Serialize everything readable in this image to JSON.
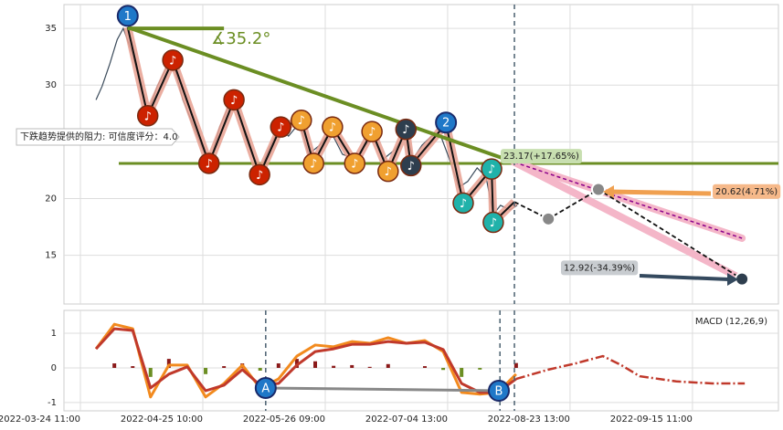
{
  "chart_data": [
    {
      "type": "line",
      "xlim": [
        3.94,
        132.35
      ],
      "ylim": [
        10.7,
        37.1
      ],
      "yticks": [
        15,
        20,
        25,
        30,
        35
      ],
      "grid": true,
      "price": {
        "color": "#3a4a5a",
        "x": [
          9.7,
          10.8,
          12.2,
          13.5,
          14.6,
          16.3,
          17.9,
          19.0,
          20.7,
          22.3,
          23.6,
          25.3,
          27.3,
          28.9,
          30.2,
          31.9,
          33.5,
          34.8,
          36.5,
          38.1,
          39.4,
          41.1,
          42.7,
          44.3,
          46.3,
          47.9,
          49.9,
          51.9,
          54.0,
          56.2,
          58.1,
          59.8,
          61.4,
          63.4,
          65.4,
          66.7,
          68.3,
          70.0,
          71.6,
          73.2,
          74.9,
          76.5,
          78.2,
          79.8,
          81.1,
          82.4,
          84.1,
          85.4
        ],
        "values": [
          28.7,
          29.9,
          31.9,
          34.0,
          35.0,
          32.7,
          29.5,
          27.5,
          29.9,
          31.5,
          31.9,
          28.7,
          26.3,
          24.3,
          23.2,
          26.3,
          28.1,
          28.5,
          25.5,
          23.5,
          22.7,
          24.7,
          26.3,
          25.5,
          26.7,
          23.9,
          24.7,
          25.9,
          23.9,
          23.5,
          24.7,
          25.5,
          23.5,
          24.3,
          25.9,
          23.5,
          24.7,
          25.5,
          25.6,
          23.5,
          21.0,
          21.5,
          22.7,
          21.9,
          18.6,
          19.4,
          19.0,
          19.4
        ]
      },
      "zigzag": {
        "color": "#111111",
        "highlight": "#e8a090",
        "x": [
          15.4,
          19.0,
          23.5,
          30.0,
          34.5,
          39.1,
          42.9,
          46.6,
          48.8,
          52.2,
          56.2,
          59.3,
          62.2,
          65.4,
          66.3,
          72.6,
          75.7,
          80.8,
          81.1,
          84.9
        ],
        "values": [
          35.1,
          27.3,
          32.2,
          23.1,
          28.7,
          22.1,
          26.3,
          26.9,
          23.1,
          26.3,
          23.1,
          25.9,
          22.4,
          26.1,
          22.9,
          26.6,
          19.6,
          22.6,
          17.9,
          19.7
        ],
        "note_symbol": "♪",
        "note_colors": [
          null,
          "#cc2200",
          "#cc2200",
          "#cc2200",
          "#cc2200",
          "#cc2200",
          "#cc2200",
          "#f0a030",
          "#f0a030",
          "#f0a030",
          "#f0a030",
          "#f0a030",
          "#f0a030",
          "#2e3e4e",
          "#2e3e4e",
          null,
          "#20b2aa",
          "#20b2aa",
          "#20b2aa",
          null
        ]
      },
      "trendline": {
        "color": "#6b8e23",
        "x": [
          15.4,
          84.9
        ],
        "values": [
          35.1,
          23.2
        ]
      },
      "angle_line": {
        "color": "#6b8e23",
        "x": [
          15.4,
          32.7
        ],
        "values": [
          35.0,
          35.0
        ],
        "label": "∡35.2°"
      },
      "support": {
        "color": "#6b8e23",
        "value": 23.1
      },
      "projection_upper": {
        "color": "#f4b6c8",
        "x": [
          84.9,
          125.8
        ],
        "values": [
          23.2,
          16.5
        ]
      },
      "projection_lower": {
        "color": "#f4b6c8",
        "x": [
          84.9,
          125.8
        ],
        "values": [
          23.2,
          12.9
        ]
      },
      "projection_path": {
        "color": "#111111",
        "x": [
          84.9,
          91.0,
          100.0,
          125.8
        ],
        "values": [
          19.7,
          18.2,
          20.8,
          12.9
        ]
      },
      "targets": [
        {
          "label": "23.17(+17.65%)",
          "value": 23.17,
          "color": "#c8dfb0"
        },
        {
          "label": "20.62(4.71%)",
          "value": 20.62,
          "color": "#f6b98a"
        },
        {
          "label": "12.92(-34.39%)",
          "value": 12.92,
          "color": "#c8ccd0"
        }
      ],
      "markers": [
        {
          "label": "1",
          "x": 15.4,
          "y": 36.1,
          "color": "#1f78c8"
        },
        {
          "label": "2",
          "x": 72.6,
          "y": 26.7,
          "color": "#1f78c8"
        }
      ],
      "vline": 84.9,
      "resistance_label": "下跌趋势提供的阻力: 可信度评分：4.0"
    },
    {
      "type": "macd",
      "title": "MACD (12,26,9)",
      "xlim": [
        3.94,
        132.35
      ],
      "ylim": [
        -1.24,
        1.66
      ],
      "yticks": [
        -1,
        0,
        1
      ],
      "grid": true,
      "xticks": [
        {
          "value": 6.9,
          "label": "2022-03-24 11:00"
        },
        {
          "value": 28.9,
          "label": "2022-04-25 10:00"
        },
        {
          "value": 50.9,
          "label": "2022-05-26 09:00"
        },
        {
          "value": 72.9,
          "label": "2022-07-04 13:00"
        },
        {
          "value": 94.9,
          "label": "2022-08-23 13:00"
        },
        {
          "value": 116.9,
          "label": "2022-09-15 11:00"
        }
      ],
      "x": [
        9.7,
        13.0,
        16.3,
        19.5,
        22.8,
        26.1,
        29.4,
        32.7,
        36.0,
        39.2,
        42.5,
        45.8,
        49.1,
        52.4,
        55.7,
        58.9,
        62.2,
        65.5,
        68.8,
        72.1,
        75.4,
        78.7,
        81.9,
        85.2
      ],
      "series": [
        {
          "color": "#f28a1e",
          "values": [
            0.55,
            1.26,
            1.13,
            -0.84,
            0.08,
            0.08,
            -0.84,
            -0.45,
            0.08,
            -0.58,
            -0.32,
            0.34,
            0.66,
            0.61,
            0.76,
            0.71,
            0.87,
            0.71,
            0.79,
            0.47,
            -0.71,
            -0.76,
            -0.71,
            -0.18
          ]
        },
        {
          "color": "#c0392b",
          "values": [
            0.55,
            1.13,
            1.08,
            -0.58,
            -0.18,
            0.03,
            -0.66,
            -0.5,
            -0.05,
            -0.5,
            -0.45,
            0.08,
            0.47,
            0.55,
            0.68,
            0.68,
            0.76,
            0.71,
            0.74,
            0.53,
            -0.45,
            -0.71,
            -0.71,
            -0.32
          ]
        }
      ],
      "histogram": {
        "colors": [
          "#8b1a1a",
          "#6b8e23"
        ],
        "values": [
          0,
          0.13,
          0.05,
          -0.26,
          0.26,
          0.05,
          -0.18,
          0.05,
          0.13,
          -0.08,
          0.13,
          0.26,
          0.19,
          0.06,
          0.08,
          0.03,
          0.11,
          0,
          0.05,
          -0.06,
          -0.26,
          -0.05,
          0,
          0.14
        ]
      },
      "projection": {
        "color": "#c0392b",
        "x": [
          85.2,
          91.0,
          95.9,
          100.8,
          104.1,
          107.4,
          114.0,
          120.5,
          126.3
        ],
        "values": [
          -0.32,
          -0.05,
          0.13,
          0.34,
          0.08,
          -0.24,
          -0.39,
          -0.45,
          -0.45
        ]
      },
      "markers": [
        {
          "label": "A",
          "x": 40.2,
          "y": -0.58,
          "color": "#1f78c8"
        },
        {
          "label": "B",
          "x": 82.1,
          "y": -0.66,
          "color": "#1f78c8"
        }
      ],
      "vlines": [
        40.2,
        82.3,
        84.9
      ]
    }
  ]
}
